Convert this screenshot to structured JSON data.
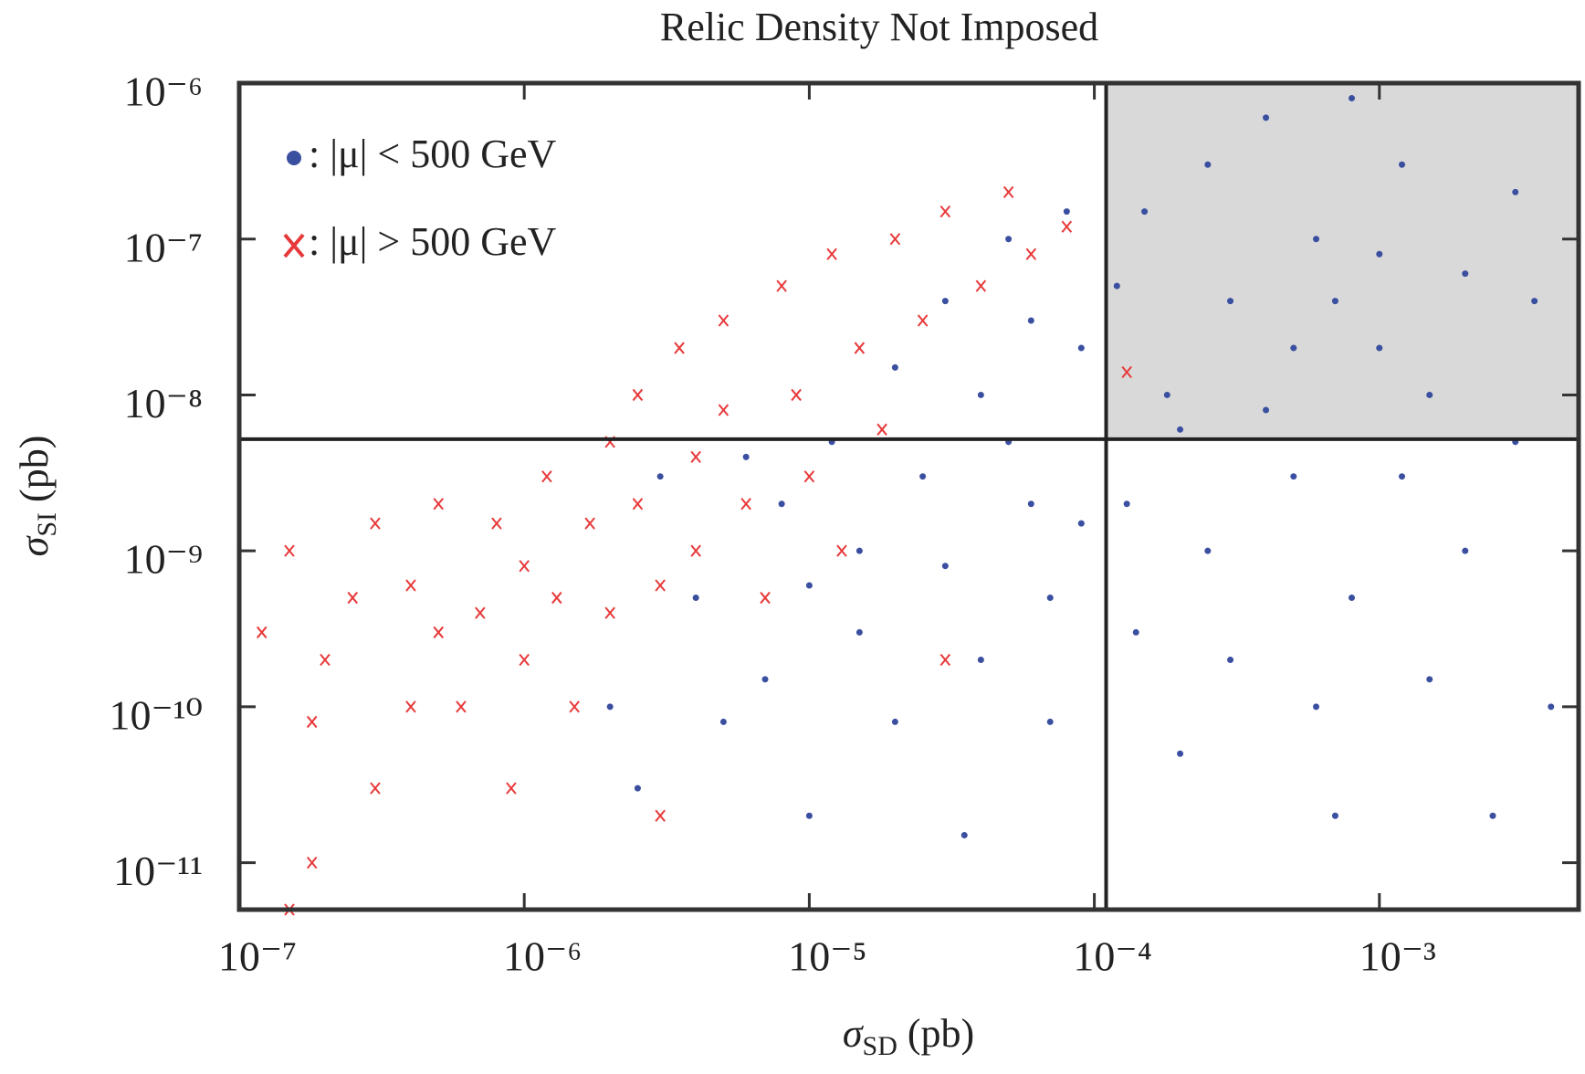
{
  "chart_data": {
    "type": "scatter",
    "title": "Relic Density Not Imposed",
    "xlabel": [
      "σ",
      "SD",
      " (pb)"
    ],
    "ylabel": [
      "σ",
      "SI",
      " (pb)"
    ],
    "xscale": "log",
    "yscale": "log",
    "xlim": [
      1e-07,
      0.005
    ],
    "ylim": [
      5e-12,
      1e-06
    ],
    "xticks": [
      {
        "value": 1e-07,
        "label": "10⁻⁷"
      },
      {
        "value": 1e-06,
        "label": "10⁻⁶"
      },
      {
        "value": 1e-05,
        "label": "10⁻⁵"
      },
      {
        "value": 0.0001,
        "label": "10⁻⁴"
      },
      {
        "value": 0.001,
        "label": "10⁻³"
      }
    ],
    "yticks": [
      {
        "value": 1e-11,
        "label": "10⁻¹¹"
      },
      {
        "value": 1e-10,
        "label": "10⁻¹⁰"
      },
      {
        "value": 1e-09,
        "label": "10⁻⁹"
      },
      {
        "value": 1e-08,
        "label": "10⁻⁸"
      },
      {
        "value": 1e-07,
        "label": "10⁻⁷"
      },
      {
        "value": 1e-06,
        "label": "10⁻⁶"
      }
    ],
    "legend": "upper left",
    "region": {
      "x": 0.00011,
      "y": 5.2e-09,
      "color": "#d9d9d9"
    },
    "series": [
      {
        "name": ": |μ| < 500 GeV",
        "color": "#3a4fa0",
        "marker": "dot",
        "x": [
          2e-06,
          2.5e-06,
          3e-06,
          4e-06,
          5e-06,
          6e-06,
          7e-06,
          8e-06,
          1e-05,
          1e-05,
          1.2e-05,
          1.5e-05,
          1.5e-05,
          2e-05,
          2e-05,
          2.5e-05,
          3e-05,
          3e-05,
          3.5e-05,
          4e-05,
          4e-05,
          5e-05,
          5e-05,
          6e-05,
          6e-05,
          7e-05,
          7e-05,
          8e-05,
          9e-05,
          9e-05,
          0.00012,
          0.00013,
          0.00014,
          0.00015,
          0.00018,
          0.0002,
          0.0002,
          0.00025,
          0.00025,
          0.0003,
          0.0003,
          0.0004,
          0.0004,
          0.0005,
          0.0005,
          0.0006,
          0.0006,
          0.0007,
          0.0007,
          0.0008,
          0.0008,
          0.001,
          0.001,
          0.0012,
          0.0012,
          0.0015,
          0.0015,
          0.002,
          0.002,
          0.0025,
          0.003,
          0.003,
          0.004,
          0.0035
        ],
        "values": [
          1e-10,
          3e-11,
          3e-09,
          5e-10,
          8e-11,
          4e-09,
          1.5e-10,
          2e-09,
          6e-10,
          2e-11,
          5e-09,
          1e-09,
          3e-10,
          1.5e-08,
          8e-11,
          3e-09,
          8e-10,
          4e-08,
          1.5e-11,
          1e-08,
          2e-10,
          5e-09,
          1e-07,
          2e-09,
          3e-08,
          5e-10,
          8e-11,
          1.5e-07,
          2e-08,
          1.5e-09,
          5e-08,
          2e-09,
          3e-10,
          1.5e-07,
          1e-08,
          5e-11,
          6e-09,
          3e-07,
          1e-09,
          4e-08,
          2e-10,
          8e-09,
          6e-07,
          2e-08,
          3e-09,
          1e-07,
          1e-10,
          4e-08,
          2e-11,
          8e-07,
          5e-10,
          8e-08,
          2e-08,
          3e-09,
          3e-07,
          1e-08,
          1.5e-10,
          6e-08,
          1e-09,
          2e-11,
          5e-09,
          2e-07,
          1e-10,
          4e-08
        ]
      },
      {
        "name": ": |μ| > 500 GeV",
        "color": "#e8393a",
        "marker": "x",
        "x": [
          1.2e-07,
          1.5e-07,
          1.8e-07,
          2e-07,
          2.5e-07,
          3e-07,
          3e-07,
          4e-07,
          4e-07,
          5e-07,
          5e-07,
          6e-07,
          7e-07,
          8e-07,
          9e-07,
          1e-06,
          1e-06,
          1.2e-06,
          1.3e-06,
          1.5e-06,
          1.7e-06,
          2e-06,
          2e-06,
          2.5e-06,
          2.5e-06,
          3e-06,
          3e-06,
          3.5e-06,
          4e-06,
          4e-06,
          5e-06,
          5e-06,
          6e-06,
          7e-06,
          8e-06,
          9e-06,
          1e-05,
          1.2e-05,
          1.3e-05,
          1.5e-05,
          1.8e-05,
          2e-05,
          2.5e-05,
          3e-05,
          3e-05,
          4e-05,
          5e-05,
          6e-05,
          8e-05,
          0.00013,
          1.5e-07,
          1.8e-07
        ],
        "values": [
          3e-10,
          1e-09,
          8e-11,
          2e-10,
          5e-10,
          1.5e-09,
          3e-11,
          1e-10,
          6e-10,
          2e-09,
          3e-10,
          1e-10,
          4e-10,
          1.5e-09,
          3e-11,
          8e-10,
          2e-10,
          3e-09,
          5e-10,
          1e-10,
          1.5e-09,
          5e-09,
          4e-10,
          1e-08,
          2e-09,
          6e-10,
          2e-11,
          2e-08,
          4e-09,
          1e-09,
          3e-08,
          8e-09,
          2e-09,
          5e-10,
          5e-08,
          1e-08,
          3e-09,
          8e-08,
          1e-09,
          2e-08,
          6e-09,
          1e-07,
          3e-08,
          2e-10,
          1.5e-07,
          5e-08,
          2e-07,
          8e-08,
          1.2e-07,
          1.4e-08,
          5e-12,
          1e-11
        ]
      }
    ]
  }
}
